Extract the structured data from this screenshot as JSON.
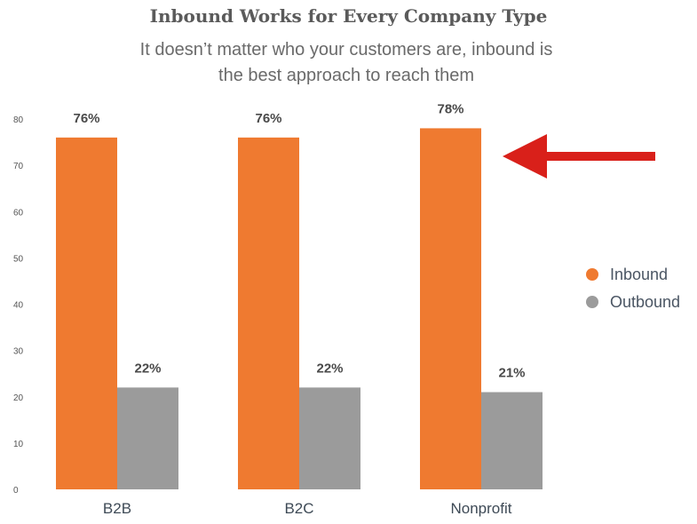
{
  "chart_data": {
    "type": "bar",
    "title": "Inbound Works for Every Company Type",
    "subtitle": "It doesn’t matter who your customers are, inbound is the best approach to reach them",
    "categories": [
      "B2B",
      "B2C",
      "Nonprofit"
    ],
    "series": [
      {
        "name": "Inbound",
        "values": [
          76,
          76,
          78
        ],
        "labels": [
          "76%",
          "76%",
          "78%"
        ],
        "color": "#ef7a30"
      },
      {
        "name": "Outbound",
        "values": [
          22,
          22,
          21
        ],
        "labels": [
          "22%",
          "22%",
          "21%"
        ],
        "color": "#9b9b9b"
      }
    ],
    "yticks": [
      0,
      10,
      20,
      30,
      40,
      50,
      60,
      70,
      80
    ],
    "ylim": [
      0,
      80
    ],
    "grid": false,
    "legend": "right",
    "annotation": {
      "type": "arrow",
      "color": "#d9201a",
      "target": "Nonprofit Inbound"
    }
  }
}
